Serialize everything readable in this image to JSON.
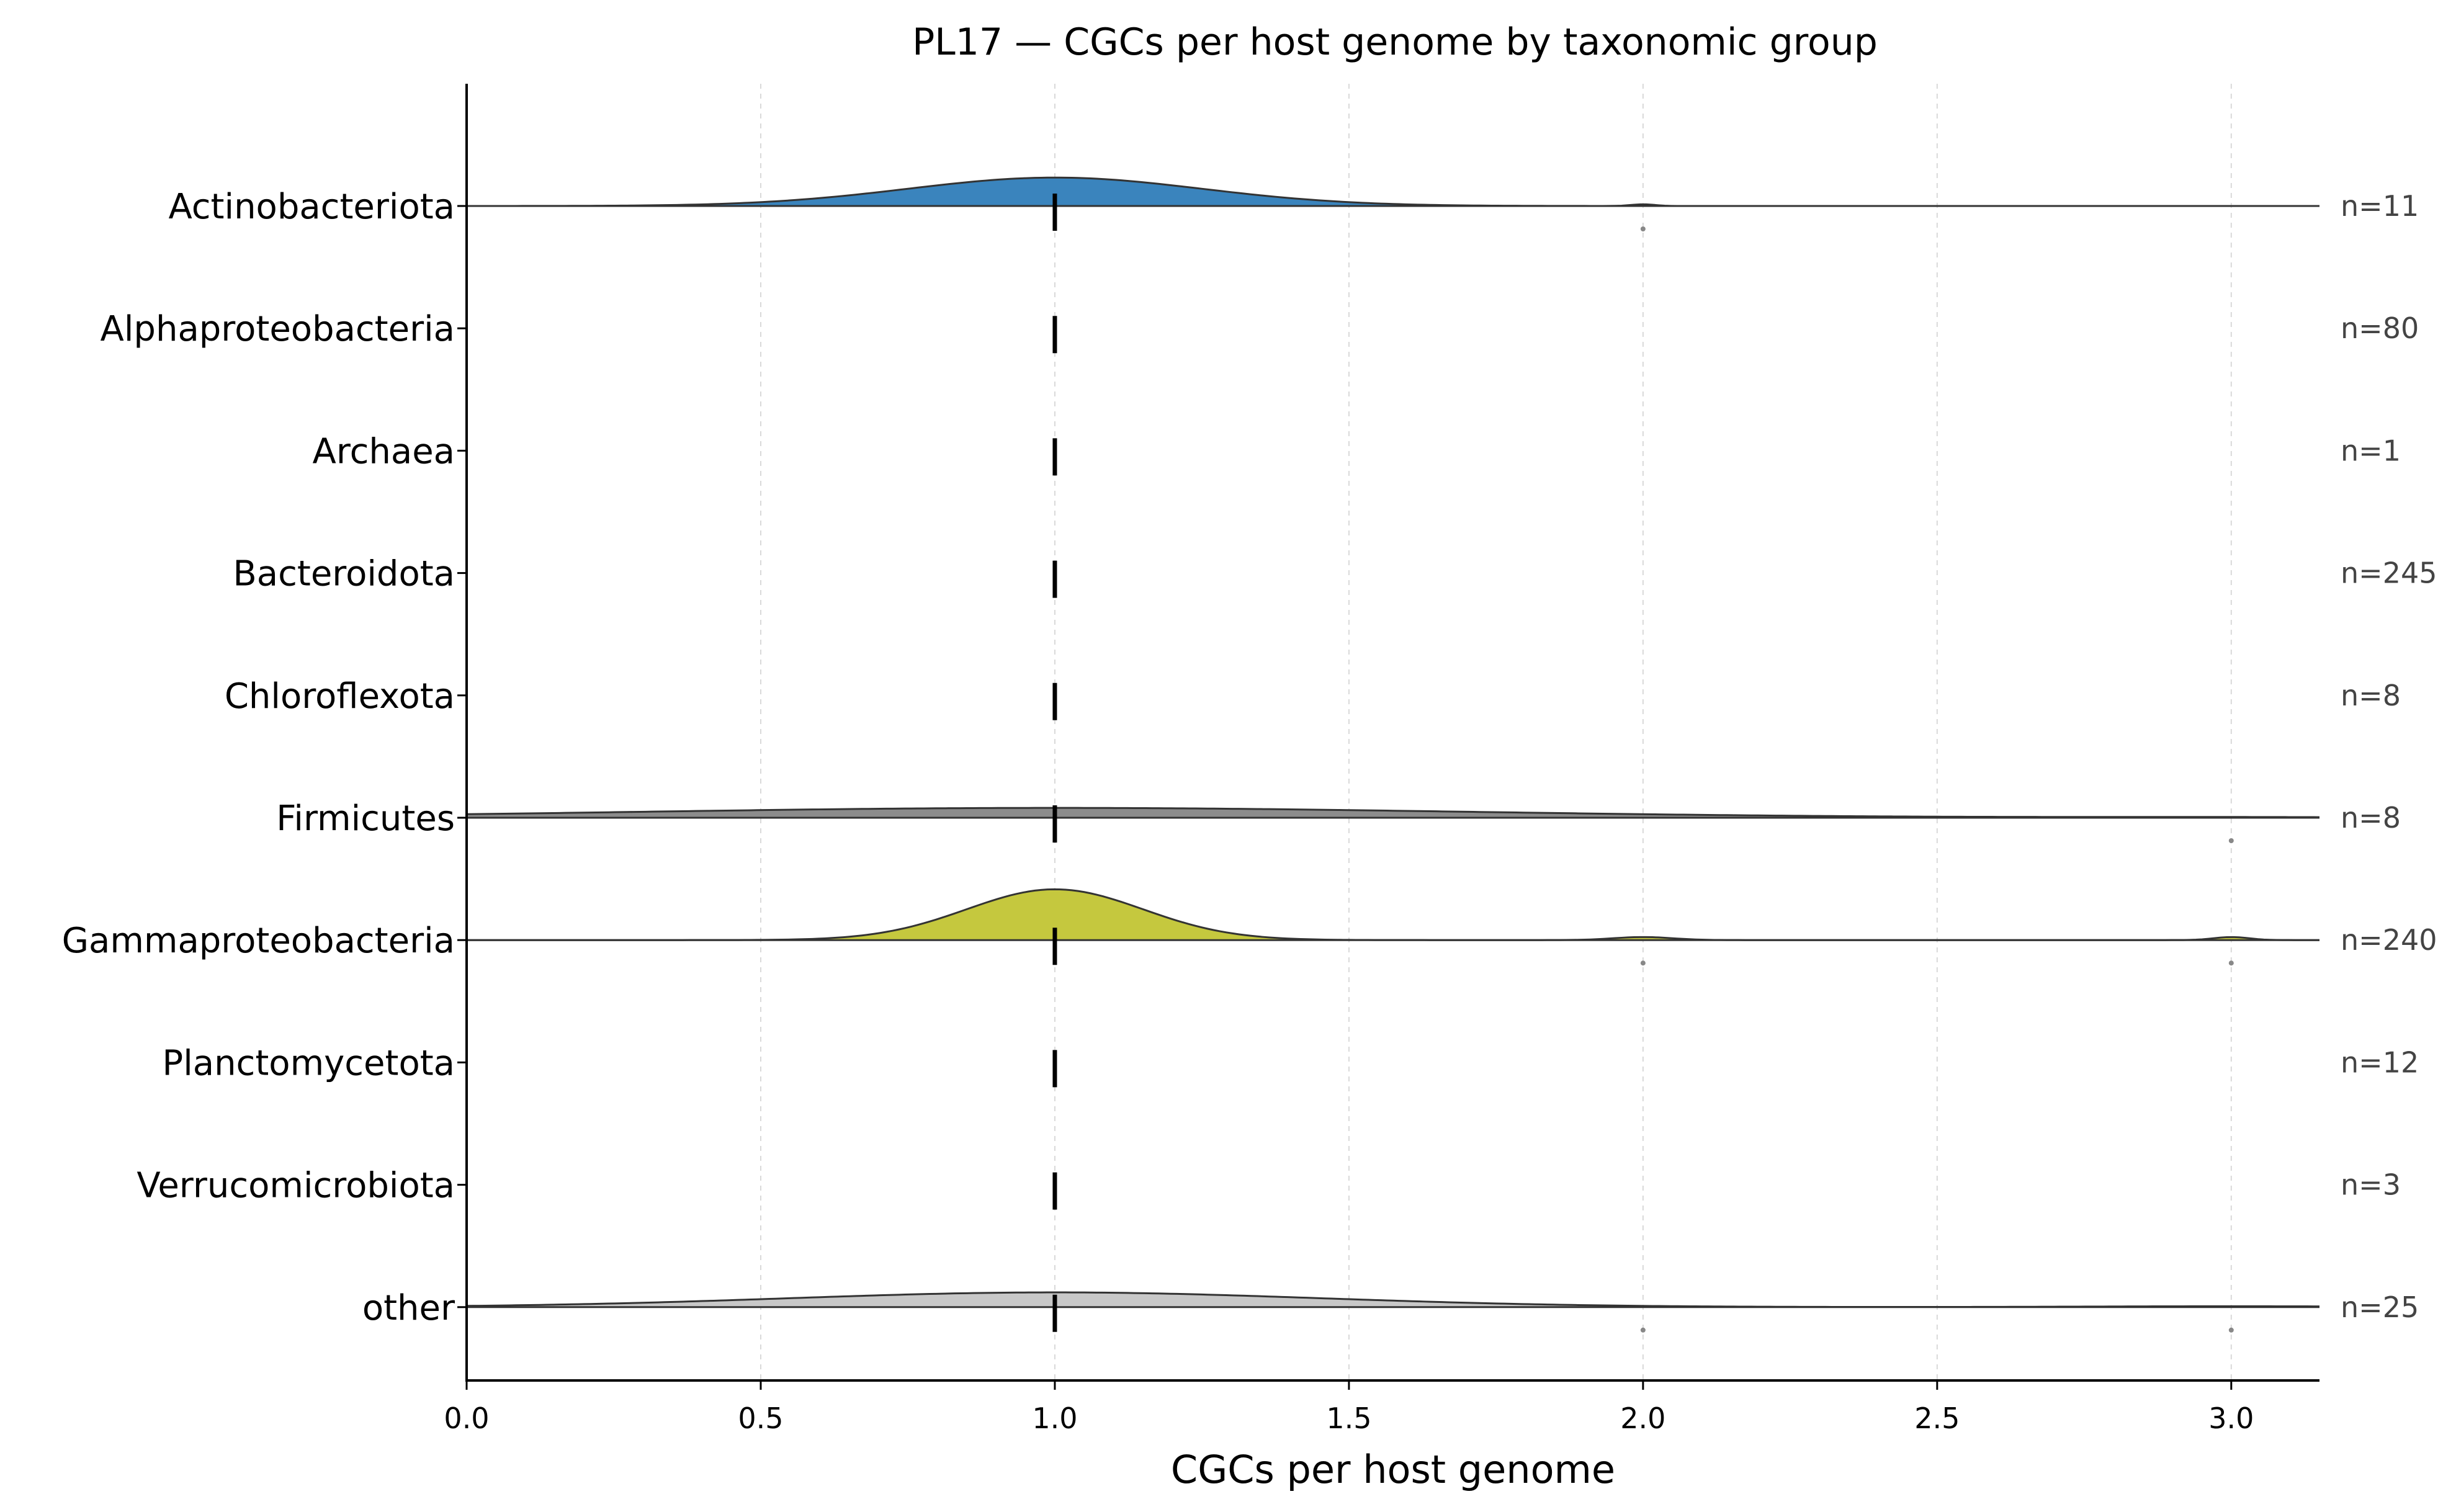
{
  "chart_data": {
    "type": "ridgeline",
    "title": "PL17 — CGCs per host genome by taxonomic group",
    "xlabel": "CGCs per host genome",
    "ylabel": "",
    "xlim": [
      0,
      3.15
    ],
    "xticks": [
      0.0,
      0.5,
      1.0,
      1.5,
      2.0,
      2.5,
      3.0
    ],
    "xtick_labels": [
      "0.0",
      "0.5",
      "1.0",
      "1.5",
      "2.0",
      "2.5",
      "3.0"
    ],
    "grid": "x-dashed",
    "groups": [
      {
        "name": "Actinobacteriota",
        "n_label": "n=11",
        "color": "#3a84bd",
        "density_peak": 1.0,
        "curve": [
          [
            1.0,
            0.25
          ],
          [
            2.0,
            0.02
          ]
        ],
        "median": 1.0,
        "outliers": [
          2.0
        ]
      },
      {
        "name": "Alphaproteobacteria",
        "n_label": "n=80",
        "color": null,
        "density_peak": 0,
        "curve": [],
        "median": 1.0,
        "outliers": []
      },
      {
        "name": "Archaea",
        "n_label": "n=1",
        "color": null,
        "density_peak": 0,
        "curve": [],
        "median": 1.0,
        "outliers": []
      },
      {
        "name": "Bacteroidota",
        "n_label": "n=245",
        "color": null,
        "density_peak": 0,
        "curve": [],
        "median": 1.0,
        "outliers": []
      },
      {
        "name": "Chloroflexota",
        "n_label": "n=8",
        "color": null,
        "density_peak": 0,
        "curve": [],
        "median": 1.0,
        "outliers": []
      },
      {
        "name": "Firmicutes",
        "n_label": "n=8",
        "color": "#8c8c8c",
        "density_peak": 1.0,
        "curve": [
          [
            1.0,
            0.7
          ],
          [
            3.0,
            0.0
          ]
        ],
        "median": 1.0,
        "outliers": [
          3.0
        ]
      },
      {
        "name": "Gammaproteobacteria",
        "n_label": "n=240",
        "color": "#c5c83e",
        "density_peak": 1.0,
        "curve": [
          [
            1.0,
            0.15
          ],
          [
            2.0,
            0.05
          ],
          [
            3.0,
            0.03
          ]
        ],
        "median": 1.0,
        "outliers": [
          2.0,
          3.0
        ]
      },
      {
        "name": "Planctomycetota",
        "n_label": "n=12",
        "color": null,
        "density_peak": 0,
        "curve": [],
        "median": 1.0,
        "outliers": []
      },
      {
        "name": "Verrucomicrobiota",
        "n_label": "n=3",
        "color": null,
        "density_peak": 0,
        "curve": [],
        "median": 1.0,
        "outliers": []
      },
      {
        "name": "other",
        "n_label": "n=25",
        "color": "#c8c8c8",
        "density_peak": 1.0,
        "curve": [
          [
            1.0,
            0.45
          ],
          [
            3.0,
            0.0
          ]
        ],
        "median": 1.0,
        "outliers": [
          2.0,
          3.0
        ]
      }
    ]
  }
}
